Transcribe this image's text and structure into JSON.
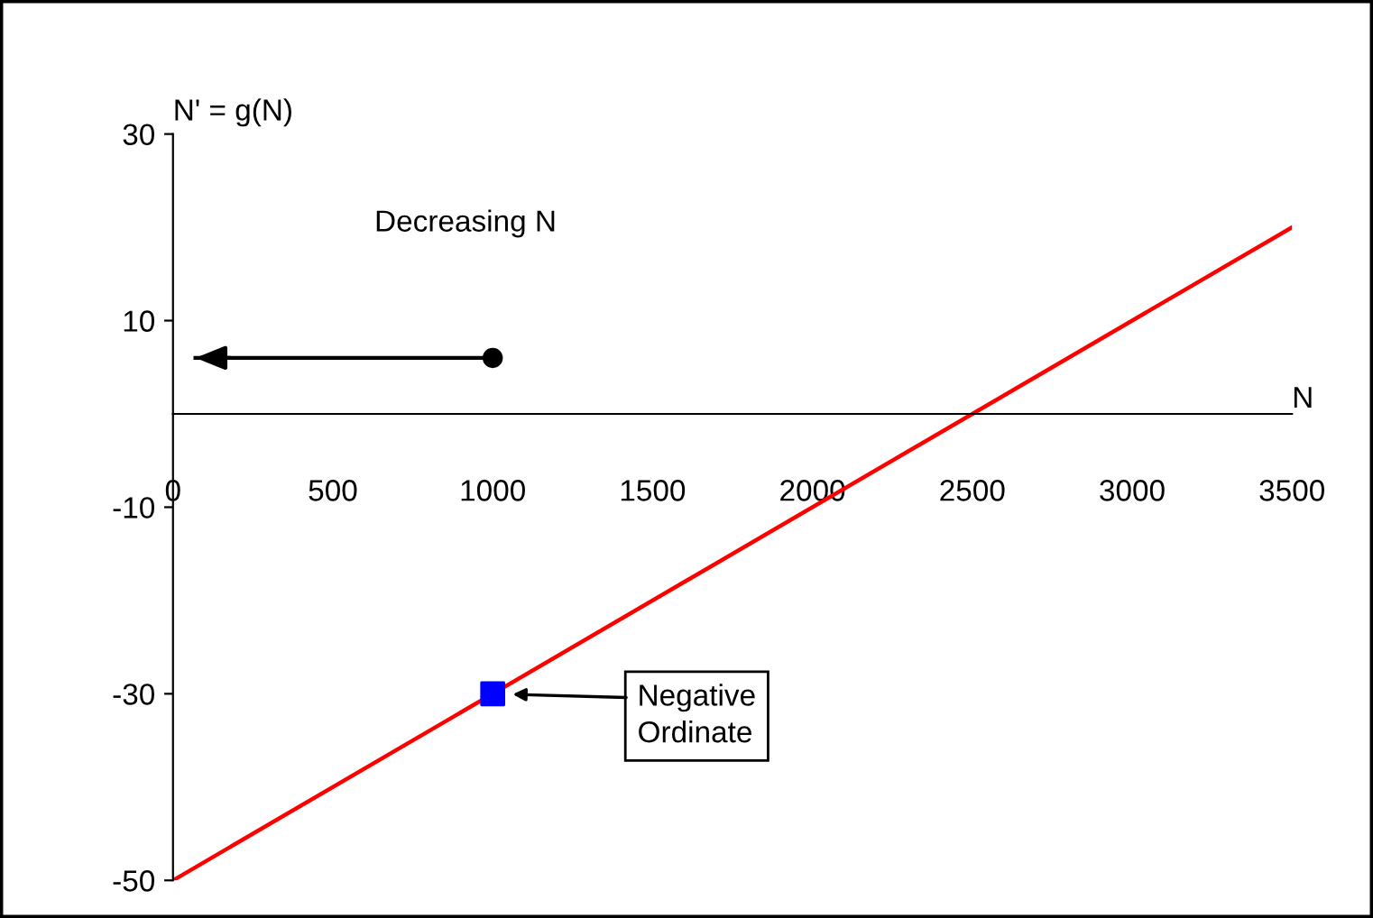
{
  "chart_data": {
    "type": "line",
    "xlabel": "N",
    "ylabel": "N' = g(N)",
    "xlim": [
      0,
      3500
    ],
    "xticks": [
      0,
      500,
      1000,
      1500,
      2000,
      2500,
      3000,
      3500
    ],
    "ylim": [
      -50,
      30
    ],
    "yticks": [
      -50,
      -30,
      -10,
      10,
      30
    ],
    "grid": false,
    "legend": false,
    "series": [
      {
        "x": [
          0,
          3500
        ],
        "values": [
          -50,
          20
        ],
        "color": "#ff0000",
        "marker": "none"
      },
      {
        "type": "scatter",
        "x": [
          1000
        ],
        "values": [
          -30
        ],
        "color": "#0000ff",
        "marker": "square"
      },
      {
        "type": "scatter",
        "x": [
          1000
        ],
        "values": [
          6
        ],
        "color": "#000000",
        "marker": "circle"
      },
      {
        "type": "line",
        "x": [
          1000,
          70
        ],
        "values": [
          6,
          6
        ],
        "color": "#000000",
        "marker": "none"
      }
    ],
    "annotations": [
      "Decreasing N",
      "Negative\nOrdinate"
    ]
  }
}
